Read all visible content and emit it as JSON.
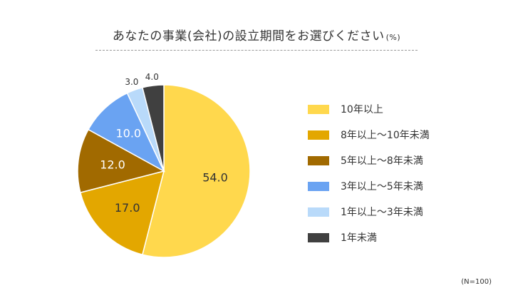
{
  "chart_data": {
    "type": "pie",
    "title": "あなたの事業(会社)の設立期間をお選びください",
    "unit": "(%)",
    "slices": [
      {
        "label": "10年以上",
        "value": 54.0,
        "color": "#FFD84D",
        "text_color": "#333333"
      },
      {
        "label": "8年以上～10年未満",
        "value": 17.0,
        "color": "#E3A700",
        "text_color": "#333333"
      },
      {
        "label": "5年以上～8年未満",
        "value": 12.0,
        "color": "#A16A00",
        "text_color": "#ffffff"
      },
      {
        "label": "3年以上～5年未満",
        "value": 10.0,
        "color": "#6AA3F2",
        "text_color": "#ffffff"
      },
      {
        "label": "1年以上～3年未満",
        "value": 3.0,
        "color": "#B9DAFA",
        "text_color": "#333333"
      },
      {
        "label": "1年未満",
        "value": 4.0,
        "color": "#404040",
        "text_color": "#333333"
      }
    ],
    "legend_position": "right",
    "note": "(N=100)"
  }
}
